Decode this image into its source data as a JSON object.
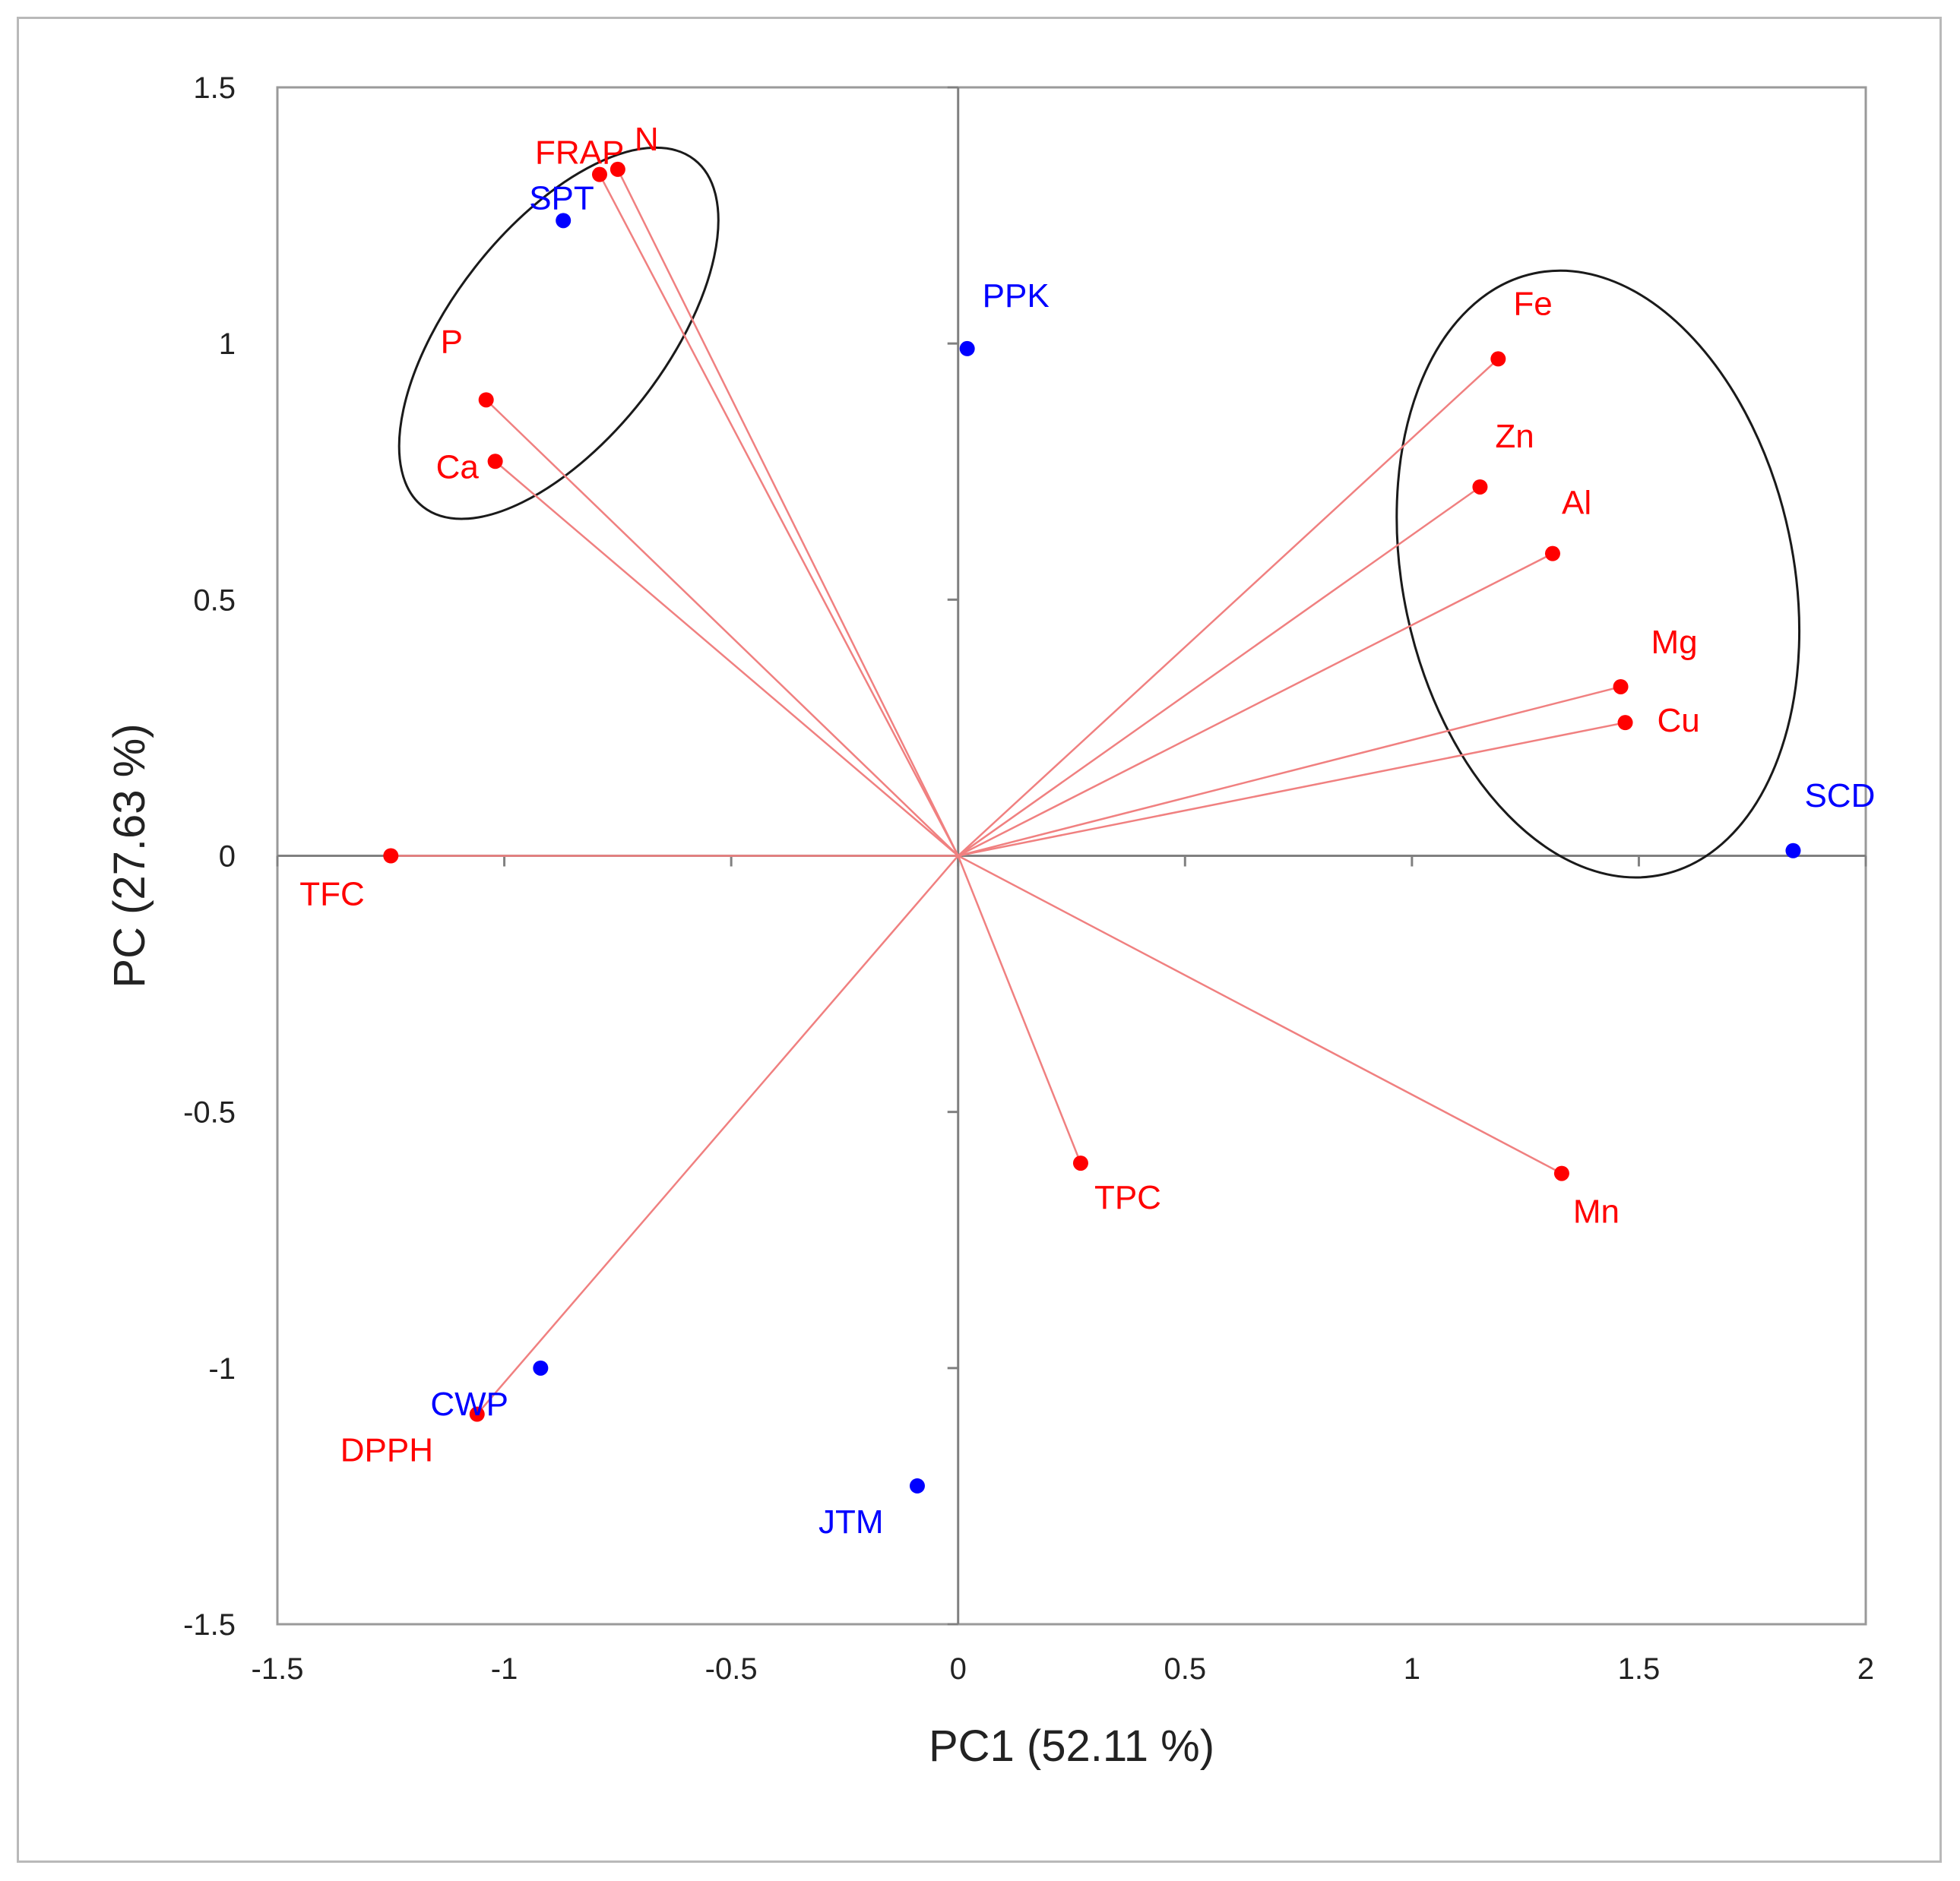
{
  "chart_data": {
    "type": "scatter",
    "subtype": "pca-biplot",
    "xlabel": "PC1 (52.11 %)",
    "ylabel": "PC (27.63 %)",
    "xlim": [
      -1.5,
      2
    ],
    "ylim": [
      -1.5,
      1.5
    ],
    "xticks": [
      "-1.5",
      "-1",
      "-0.5",
      "0",
      "0.5",
      "1",
      "1.5",
      "2"
    ],
    "xtick_values": [
      -1.5,
      -1,
      -0.5,
      0,
      0.5,
      1,
      1.5,
      2
    ],
    "yticks": [
      "1.5",
      "1",
      "0.5",
      "0",
      "-0.5",
      "-1",
      "-1.5"
    ],
    "ytick_values": [
      1.5,
      1,
      0.5,
      0,
      -0.5,
      -1,
      -1.5
    ],
    "colors": {
      "variable": "#ff0000",
      "loading_line": "#f08080",
      "sample": "#0000ff",
      "axis": "#808080",
      "ellipse": "#1a1a1a"
    },
    "variables": [
      {
        "name": "FRAP",
        "x": -0.79,
        "y": 1.33
      },
      {
        "name": "N",
        "x": -0.75,
        "y": 1.34
      },
      {
        "name": "P",
        "x": -1.04,
        "y": 0.89
      },
      {
        "name": "Ca",
        "x": -1.02,
        "y": 0.77
      },
      {
        "name": "Fe",
        "x": 1.19,
        "y": 0.97
      },
      {
        "name": "Zn",
        "x": 1.15,
        "y": 0.72
      },
      {
        "name": "Al",
        "x": 1.31,
        "y": 0.59
      },
      {
        "name": "Mg",
        "x": 1.46,
        "y": 0.33
      },
      {
        "name": "Cu",
        "x": 1.47,
        "y": 0.26
      },
      {
        "name": "TFC",
        "x": -1.25,
        "y": 0.0
      },
      {
        "name": "TPC",
        "x": 0.27,
        "y": -0.6
      },
      {
        "name": "Mn",
        "x": 1.33,
        "y": -0.62
      },
      {
        "name": "DPPH",
        "x": -1.06,
        "y": -1.09
      }
    ],
    "samples": [
      {
        "name": "SPT",
        "x": -0.87,
        "y": 1.24
      },
      {
        "name": "PPK",
        "x": 0.02,
        "y": 0.99
      },
      {
        "name": "SCD",
        "x": 1.84,
        "y": 0.01
      },
      {
        "name": "CWP",
        "x": -0.92,
        "y": -1.0
      },
      {
        "name": "JTM",
        "x": -0.09,
        "y": -1.23
      }
    ],
    "ellipses": [
      {
        "name": "left-group",
        "cx": -0.88,
        "cy": 1.02,
        "rx": 0.235,
        "ry": 0.43,
        "rotation": 38,
        "members": [
          "FRAP",
          "N",
          "SPT",
          "P",
          "Ca"
        ]
      },
      {
        "name": "right-group",
        "cx": 1.41,
        "cy": 0.55,
        "rx": 0.43,
        "ry": 0.6,
        "rotation": -12,
        "members": [
          "Fe",
          "Zn",
          "Al",
          "Mg",
          "Cu"
        ]
      }
    ]
  }
}
